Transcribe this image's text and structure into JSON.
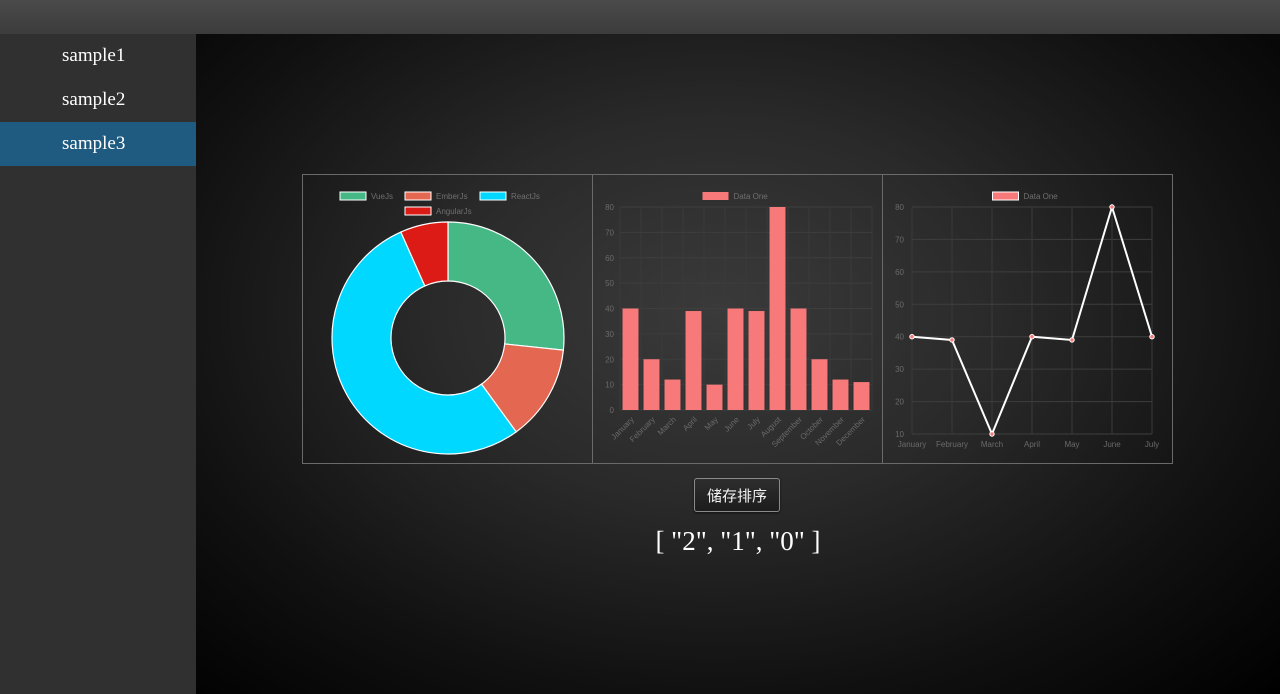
{
  "sidebar": {
    "items": [
      {
        "label": "sample1",
        "active": false
      },
      {
        "label": "sample2",
        "active": false
      },
      {
        "label": "sample3",
        "active": true
      }
    ]
  },
  "save_button_label": "储存排序",
  "order_text": "[ \"2\", \"1\", \"0\" ]",
  "colors": {
    "vue": "#45b885",
    "ember": "#e46851",
    "react": "#00d8ff",
    "angular": "#dd1b16",
    "bar": "#f87979",
    "line": "#ffffff",
    "sidebar_active": "#1f5b80"
  },
  "chart_data": [
    {
      "type": "pie",
      "donut": true,
      "labels": [
        "VueJs",
        "EmberJs",
        "ReactJs",
        "AngularJs"
      ],
      "values": [
        40,
        20,
        80,
        10
      ],
      "colors": [
        "#45b885",
        "#e46851",
        "#00d8ff",
        "#dd1b16"
      ],
      "legend": "top"
    },
    {
      "type": "bar",
      "categories": [
        "January",
        "February",
        "March",
        "April",
        "May",
        "June",
        "July",
        "August",
        "September",
        "October",
        "November",
        "December"
      ],
      "series": [
        {
          "name": "Data One",
          "values": [
            40,
            20,
            12,
            39,
            10,
            40,
            39,
            80,
            40,
            20,
            12,
            11
          ]
        }
      ],
      "ylim": [
        0,
        80
      ],
      "yticks": [
        0,
        10,
        20,
        30,
        40,
        50,
        60,
        70,
        80
      ],
      "grid": true,
      "legend": "top"
    },
    {
      "type": "line",
      "categories": [
        "January",
        "February",
        "March",
        "April",
        "May",
        "June",
        "July"
      ],
      "series": [
        {
          "name": "Data One",
          "values": [
            40,
            39,
            10,
            40,
            39,
            80,
            40
          ]
        }
      ],
      "ylim": [
        10,
        80
      ],
      "yticks": [
        10,
        20,
        30,
        40,
        50,
        60,
        70,
        80
      ],
      "grid": true,
      "legend": "top"
    }
  ]
}
